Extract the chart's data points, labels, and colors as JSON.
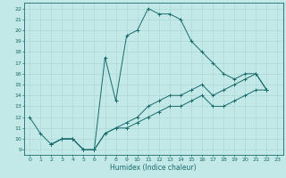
{
  "xlabel": "Humidex (Indice chaleur)",
  "xlim": [
    -0.5,
    23.5
  ],
  "ylim": [
    8.5,
    22.5
  ],
  "xticks": [
    0,
    1,
    2,
    3,
    4,
    5,
    6,
    7,
    8,
    9,
    10,
    11,
    12,
    13,
    14,
    15,
    16,
    17,
    18,
    19,
    20,
    21,
    22,
    23
  ],
  "yticks": [
    9,
    10,
    11,
    12,
    13,
    14,
    15,
    16,
    17,
    18,
    19,
    20,
    21,
    22
  ],
  "bg_color": "#c2e8e8",
  "line_color": "#1a6b6b",
  "grid_color": "#a8d4d4",
  "line1_x": [
    0,
    1,
    2,
    3,
    4,
    5,
    6,
    7,
    8,
    9,
    10,
    11,
    12,
    13,
    14,
    15,
    16,
    17,
    18,
    19,
    20,
    21,
    22
  ],
  "line1_y": [
    12,
    10.5,
    9.5,
    10,
    10,
    9,
    9,
    17.5,
    13.5,
    19.5,
    20,
    22,
    21.5,
    21.5,
    21,
    19,
    18,
    17,
    16,
    15.5,
    16,
    16,
    14.5
  ],
  "line2_x": [
    2,
    3,
    4,
    5,
    6,
    7,
    8,
    9,
    10,
    11,
    12,
    13,
    14,
    15,
    16,
    17,
    18,
    19,
    20,
    21,
    22
  ],
  "line2_y": [
    9.5,
    10,
    10,
    9,
    9,
    10.5,
    11,
    11.5,
    12,
    13,
    13.5,
    14,
    14,
    14.5,
    15,
    14,
    14.5,
    15,
    15.5,
    16,
    14.5
  ],
  "line3_x": [
    2,
    3,
    4,
    5,
    6,
    7,
    8,
    9,
    10,
    11,
    12,
    13,
    14,
    15,
    16,
    17,
    18,
    19,
    20,
    21,
    22
  ],
  "line3_y": [
    9.5,
    10,
    10,
    9,
    9,
    10.5,
    11,
    11,
    11.5,
    12,
    12.5,
    13,
    13,
    13.5,
    14,
    13,
    13,
    13.5,
    14,
    14.5,
    14.5
  ],
  "xlabel_fontsize": 5.5,
  "tick_fontsize": 4.5,
  "linewidth": 0.7,
  "markersize": 3,
  "markeredgewidth": 0.7
}
